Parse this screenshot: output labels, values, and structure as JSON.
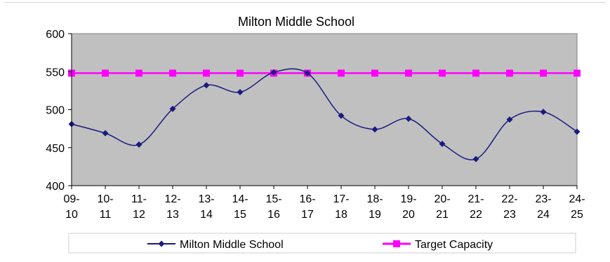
{
  "chart_data": {
    "type": "line",
    "title": "Milton Middle School",
    "categories": [
      "09-10",
      "10-11",
      "11-12",
      "12-13",
      "13-14",
      "14-15",
      "15-16",
      "16-17",
      "17-18",
      "18-19",
      "19-20",
      "20-21",
      "21-22",
      "22-23",
      "23-24",
      "24-25"
    ],
    "category_lines": [
      [
        "09-",
        "10"
      ],
      [
        "10-",
        "11"
      ],
      [
        "11-",
        "12"
      ],
      [
        "12-",
        "13"
      ],
      [
        "13-",
        "14"
      ],
      [
        "14-",
        "15"
      ],
      [
        "15-",
        "16"
      ],
      [
        "16-",
        "17"
      ],
      [
        "17-",
        "18"
      ],
      [
        "18-",
        "19"
      ],
      [
        "19-",
        "20"
      ],
      [
        "20-",
        "21"
      ],
      [
        "21-",
        "22"
      ],
      [
        "22-",
        "23"
      ],
      [
        "23-",
        "24"
      ],
      [
        "24-",
        "25"
      ]
    ],
    "series": [
      {
        "name": "Milton Middle School",
        "values": [
          481,
          469,
          454,
          501,
          532,
          523,
          549,
          548,
          492,
          474,
          488,
          455,
          435,
          487,
          497,
          471
        ],
        "color": "#1a1a80",
        "marker": "diamond",
        "smooth": true
      },
      {
        "name": "Target Capacity",
        "values": [
          548,
          548,
          548,
          548,
          548,
          548,
          548,
          548,
          548,
          548,
          548,
          548,
          548,
          548,
          548,
          548
        ],
        "color": "#ff00ff",
        "marker": "square",
        "smooth": false
      }
    ],
    "ylim": [
      400,
      600
    ],
    "yticks": [
      "400",
      "450",
      "500",
      "550",
      "600"
    ],
    "xlabel": "",
    "ylabel": "",
    "grid": false,
    "plot_background": "#c0c0c0",
    "legend_position": "bottom"
  }
}
